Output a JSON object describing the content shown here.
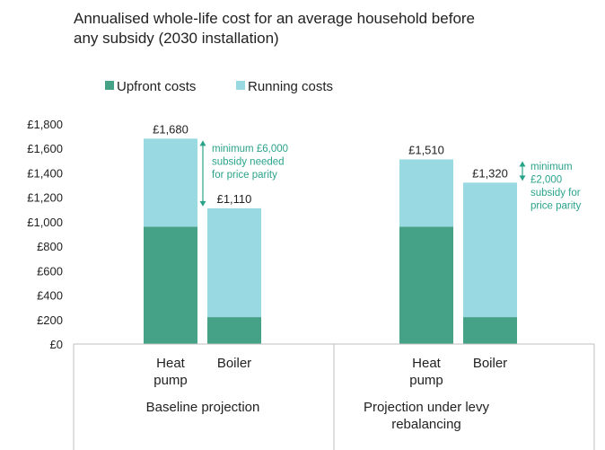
{
  "chart_data": {
    "type": "bar",
    "stacked": true,
    "title": "Annualised whole-life cost for an average household before any subsidy (2030 installation)",
    "title_lines": [
      "Annualised whole-life cost for an average household before",
      "any subsidy (2030 installation)"
    ],
    "legend_position": "top-left",
    "ylim": [
      0,
      1800
    ],
    "yticks": [
      0,
      200,
      400,
      600,
      800,
      1000,
      1200,
      1400,
      1600,
      1800
    ],
    "ytick_labels": [
      "£0",
      "£200",
      "£400",
      "£600",
      "£800",
      "£1,000",
      "£1,200",
      "£1,400",
      "£1,600",
      "£1,800"
    ],
    "grid": false,
    "colors": {
      "upfront": "#46a287",
      "running": "#98d9e2",
      "annotation": "#2aa38b"
    },
    "series": [
      {
        "name": "Upfront costs",
        "values": [
          960,
          220,
          960,
          220
        ]
      },
      {
        "name": "Running costs",
        "values": [
          720,
          890,
          550,
          1100
        ]
      }
    ],
    "totals": [
      "£1,680",
      "£1,110",
      "£1,510",
      "£1,320"
    ],
    "categories": [
      {
        "lines": [
          "Heat",
          "pump"
        ]
      },
      {
        "lines": [
          "Boiler"
        ]
      },
      {
        "lines": [
          "Heat",
          "pump"
        ]
      },
      {
        "lines": [
          "Boiler"
        ]
      }
    ],
    "groups": [
      {
        "lines": [
          "Baseline projection"
        ]
      },
      {
        "lines": [
          "Projection under levy",
          "rebalancing"
        ]
      }
    ],
    "annotations": [
      {
        "lines": [
          "minimum £6,000",
          "subsidy needed",
          "for price parity"
        ],
        "from": 1680,
        "to": 1110
      },
      {
        "lines": [
          "minimum",
          "£2,000",
          "subsidy for",
          "price parity"
        ],
        "from": 1510,
        "to": 1320
      }
    ]
  }
}
